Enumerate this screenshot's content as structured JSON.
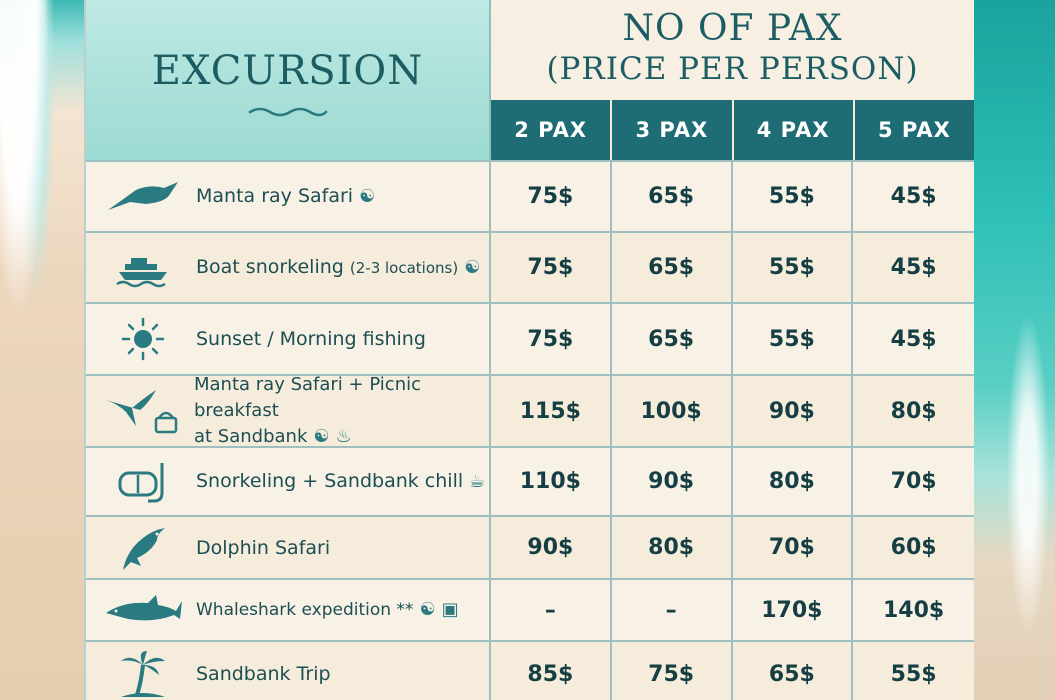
{
  "header": {
    "excursion_title": "EXCURSION",
    "pax_title_line1": "NO OF PAX",
    "pax_title_line2": "(PRICE PER PERSON)",
    "pax_columns": [
      "2 PAX",
      "3 PAX",
      "4 PAX",
      "5 PAX"
    ]
  },
  "colors": {
    "header_teal": "#1f6d74",
    "excursion_header_bg": "#9bdad2",
    "text_dark": "#1d4e53",
    "board_bg": "#f7efe2"
  },
  "rows": [
    {
      "icon": "manta-ray-icon",
      "name_line1": "Manta ray Safari",
      "name_line2": "",
      "extra_icons": [
        "snorkel-mask-icon"
      ],
      "prices": [
        "75$",
        "65$",
        "55$",
        "45$"
      ]
    },
    {
      "icon": "boat-icon",
      "name_line1": "Boat snorkeling",
      "name_small": "(2-3 locations)",
      "name_line2": "",
      "extra_icons": [
        "snorkel-mask-icon"
      ],
      "prices": [
        "75$",
        "65$",
        "55$",
        "45$"
      ]
    },
    {
      "icon": "sun-icon",
      "name_line1": "Sunset / Morning fishing",
      "name_line2": "",
      "extra_icons": [],
      "prices": [
        "75$",
        "65$",
        "55$",
        "45$"
      ]
    },
    {
      "icon": "manta-ray-picnic-icon",
      "name_line1": "Manta ray Safari + Picnic breakfast",
      "name_line2": "at Sandbank",
      "extra_icons": [
        "snorkel-mask-icon",
        "cutlery-icon"
      ],
      "prices": [
        "115$",
        "100$",
        "90$",
        "80$"
      ]
    },
    {
      "icon": "snorkel-icon",
      "name_line1": "Snorkeling + Sandbank chill",
      "name_line2": "",
      "extra_icons": [
        "drink-icon"
      ],
      "prices": [
        "110$",
        "90$",
        "80$",
        "70$"
      ]
    },
    {
      "icon": "dolphin-icon",
      "name_line1": "Dolphin Safari",
      "name_line2": "",
      "extra_icons": [],
      "prices": [
        "90$",
        "80$",
        "70$",
        "60$"
      ]
    },
    {
      "icon": "whaleshark-icon",
      "name_line1": "Whaleshark expedition **",
      "name_line2": "",
      "extra_icons": [
        "snorkel-mask-icon",
        "camera-icon"
      ],
      "prices": [
        "–",
        "–",
        "170$",
        "140$"
      ]
    },
    {
      "icon": "palm-tree-icon",
      "name_line1": "Sandbank Trip",
      "name_line2": "",
      "extra_icons": [],
      "prices": [
        "85$",
        "75$",
        "65$",
        "55$"
      ]
    }
  ]
}
